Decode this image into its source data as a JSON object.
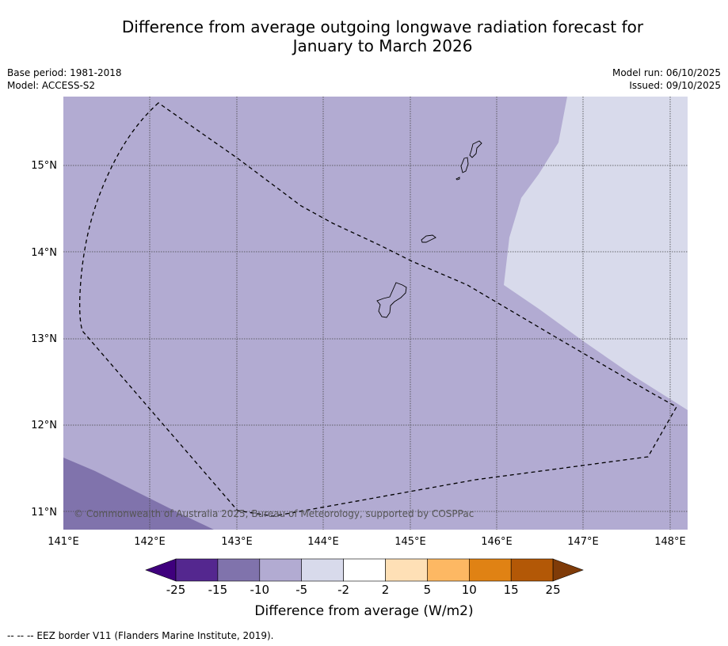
{
  "title_line1": "Difference from average outgoing longwave radiation forecast for",
  "title_line2": "January to March 2026",
  "base_period": "Base period: 1981-2018",
  "model": "Model: ACCESS-S2",
  "model_run": "Model run: 06/10/2025",
  "issued": "Issued: 09/10/2025",
  "copyright": "© Commonwealth of Australia 2025, Bureau of Meteorology, supported by COSPPac",
  "lat_labels": [
    "15°N",
    "14°N",
    "13°N",
    "12°N",
    "11°N"
  ],
  "lon_labels": [
    "141°E",
    "142°E",
    "143°E",
    "144°E",
    "145°E",
    "146°E",
    "147°E",
    "148°E"
  ],
  "colorbar": {
    "ticks": [
      "-25",
      "-15",
      "-10",
      "-5",
      "-2",
      "2",
      "5",
      "10",
      "15",
      "25"
    ],
    "colors": [
      "#3f007d",
      "#54278f",
      "#8073ac",
      "#b2abd2",
      "#d8daeb",
      "#ffffff",
      "#fee0b6",
      "#fdb863",
      "#e08214",
      "#b35806",
      "#7f3b08"
    ],
    "label": "Difference from average (W/m2)"
  },
  "legend_text": "--  --  -- EEZ border V11 (Flanders Marine Institute, 2019)."
}
